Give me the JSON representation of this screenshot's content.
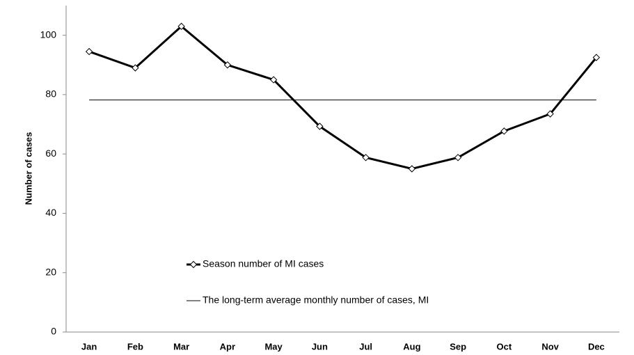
{
  "chart_data": {
    "type": "line",
    "ylabel": "Number of cases",
    "categories": [
      "Jan",
      "Feb",
      "Mar",
      "Apr",
      "May",
      "Jun",
      "Jul",
      "Aug",
      "Sep",
      "Oct",
      "Nov",
      "Dec"
    ],
    "series": [
      {
        "name": "Season number of MI cases",
        "color": "#000000",
        "marker": "diamond",
        "values": [
          94.5,
          89,
          103,
          90,
          85,
          69.3,
          58.8,
          55,
          58.8,
          67.7,
          73.5,
          92.5
        ]
      },
      {
        "name": "The long-term average monthly number of cases, MI",
        "color": "#000000",
        "values": [
          78.2,
          78.2,
          78.2,
          78.2,
          78.2,
          78.2,
          78.2,
          78.2,
          78.2,
          78.2,
          78.2,
          78.2
        ]
      }
    ],
    "ylim": [
      0,
      110
    ],
    "yticks": [
      0,
      20,
      40,
      60,
      80,
      100
    ],
    "grid": false,
    "legend": "lower left"
  }
}
